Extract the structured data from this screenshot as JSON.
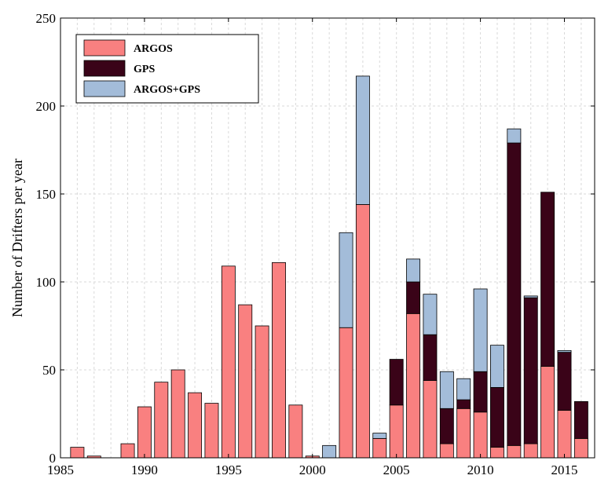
{
  "chart_data": {
    "type": "bar",
    "stacked": true,
    "title": "",
    "xlabel": "",
    "ylabel": "Number of  Drifters per year",
    "xlim": [
      1985,
      2016.8
    ],
    "ylim": [
      0,
      250
    ],
    "xticks": [
      1985,
      1990,
      1995,
      2000,
      2005,
      2010,
      2015
    ],
    "yticks": [
      0,
      50,
      100,
      150,
      200,
      250
    ],
    "grid": true,
    "legend_position": "top-left",
    "x": [
      1986,
      1987,
      1988,
      1989,
      1990,
      1991,
      1992,
      1993,
      1994,
      1995,
      1996,
      1997,
      1998,
      1999,
      2000,
      2001,
      2002,
      2003,
      2004,
      2005,
      2006,
      2007,
      2008,
      2009,
      2010,
      2011,
      2012,
      2013,
      2014,
      2015,
      2016
    ],
    "series": [
      {
        "name": "ARGOS",
        "color": "#f98080",
        "values": [
          6,
          1,
          0,
          8,
          29,
          43,
          50,
          37,
          31,
          109,
          87,
          75,
          111,
          30,
          1,
          0,
          74,
          144,
          11,
          30,
          82,
          44,
          8,
          28,
          26,
          6,
          7,
          8,
          52,
          27,
          11
        ]
      },
      {
        "name": "GPS",
        "color": "#3a0318",
        "values": [
          0,
          0,
          0,
          0,
          0,
          0,
          0,
          0,
          0,
          0,
          0,
          0,
          0,
          0,
          0,
          0,
          0,
          0,
          0,
          26,
          18,
          26,
          20,
          5,
          23,
          34,
          172,
          83,
          99,
          33,
          21
        ]
      },
      {
        "name": "ARGOS+GPS",
        "color": "#a3bcd9",
        "values": [
          0,
          0,
          0,
          0,
          0,
          0,
          0,
          0,
          0,
          0,
          0,
          0,
          0,
          0,
          0,
          7,
          54,
          73,
          3,
          0,
          13,
          23,
          21,
          12,
          47,
          24,
          8,
          1,
          0,
          1,
          0
        ]
      }
    ]
  }
}
